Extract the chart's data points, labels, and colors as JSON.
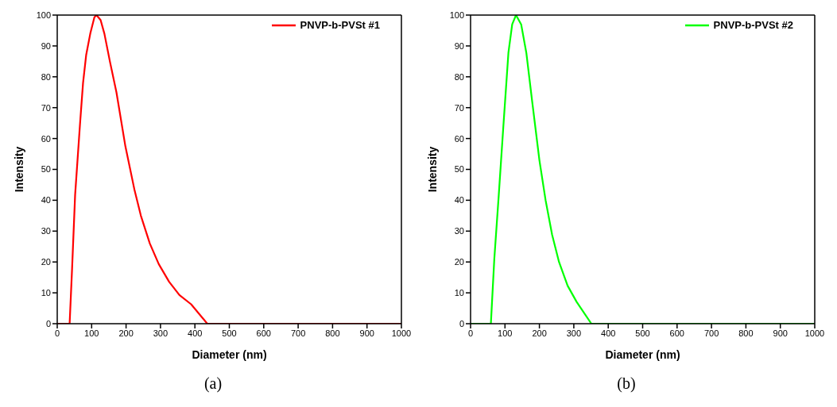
{
  "chart_data": [
    {
      "type": "line",
      "title": "(a)",
      "xlabel": "Diameter (nm)",
      "ylabel": "Intensity",
      "x": [
        0,
        36,
        43,
        52,
        66,
        75,
        84,
        96,
        108,
        114,
        126,
        137,
        153,
        172,
        198,
        224,
        243,
        269,
        295,
        325,
        355,
        389,
        436,
        1000
      ],
      "series": [
        {
          "name": "PNVP-b-PVSt #1",
          "color": "#ff0000",
          "values": [
            0,
            0,
            17.5,
            41.8,
            64.4,
            78,
            87,
            94,
            99.3,
            100,
            98.4,
            94,
            85,
            75,
            57.5,
            43.6,
            35,
            26,
            19.3,
            13.6,
            9.3,
            6.3,
            0,
            0
          ]
        }
      ],
      "xlim": [
        0,
        1000
      ],
      "ylim": [
        0,
        100
      ],
      "xticks": [
        0,
        100,
        200,
        300,
        400,
        500,
        600,
        700,
        800,
        900,
        1000
      ],
      "yticks": [
        0,
        10,
        20,
        30,
        40,
        50,
        60,
        70,
        80,
        90,
        100
      ],
      "grid": false,
      "legend": "top right",
      "marker": "none",
      "line_style": "solid"
    },
    {
      "type": "line",
      "title": "(b)",
      "xlabel": "Diameter (nm)",
      "ylabel": "Intensity",
      "x": [
        0,
        59,
        69,
        82,
        95,
        110,
        121,
        132,
        147,
        162,
        179,
        200,
        218,
        237,
        257,
        282,
        308,
        351,
        1000
      ],
      "series": [
        {
          "name": "PNVP-b-PVSt #2",
          "color": "#00ff00",
          "values": [
            0,
            0,
            21,
            41.8,
            63.5,
            87.8,
            97,
            100,
            97,
            87.8,
            72,
            53,
            40,
            28.8,
            20,
            12.3,
            7.1,
            0,
            0
          ]
        }
      ],
      "xlim": [
        0,
        1000
      ],
      "ylim": [
        0,
        100
      ],
      "xticks": [
        0,
        100,
        200,
        300,
        400,
        500,
        600,
        700,
        800,
        900,
        1000
      ],
      "yticks": [
        0,
        10,
        20,
        30,
        40,
        50,
        60,
        70,
        80,
        90,
        100
      ],
      "grid": false,
      "legend": "top right",
      "marker": "none",
      "line_style": "solid"
    }
  ]
}
